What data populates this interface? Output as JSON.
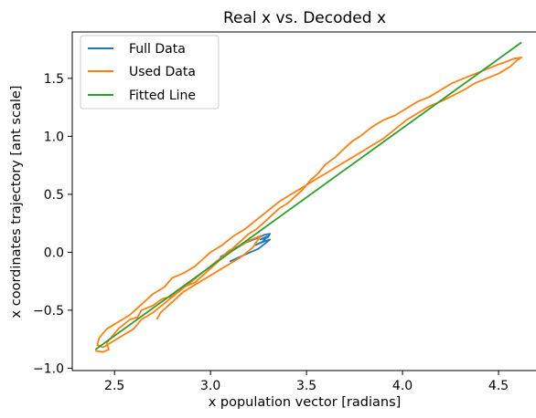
{
  "chart_data": {
    "type": "line",
    "title": "Real x vs. Decoded x",
    "xlabel": "x population vector [radians]",
    "ylabel": "x coordinates trajectory [ant scale]",
    "xlim": [
      2.28,
      4.7
    ],
    "ylim": [
      -1.02,
      1.9
    ],
    "xticks": [
      2.5,
      3.0,
      3.5,
      4.0,
      4.5
    ],
    "xtick_labels": [
      "2.5",
      "3.0",
      "3.5",
      "4.0",
      "4.5"
    ],
    "yticks": [
      -1.0,
      -0.5,
      0.0,
      0.5,
      1.0,
      1.5
    ],
    "ytick_labels": [
      "−1.0",
      "−0.5",
      "0.0",
      "0.5",
      "1.0",
      "1.5"
    ],
    "grid": false,
    "legend_position": "top-left",
    "series": [
      {
        "name": "Full Data",
        "color": "#1f77b4",
        "style": "trace",
        "x": [
          3.05,
          3.12,
          3.18,
          3.24,
          3.28,
          3.31,
          3.3,
          3.26,
          3.3,
          3.27,
          3.23,
          3.29,
          3.31,
          3.25,
          3.18,
          3.1
        ],
        "y": [
          -0.04,
          0.02,
          0.08,
          0.12,
          0.15,
          0.16,
          0.13,
          0.11,
          0.14,
          0.09,
          0.06,
          0.1,
          0.11,
          0.03,
          -0.02,
          -0.08
        ]
      },
      {
        "name": "Used Data",
        "color": "#ff7f0e",
        "style": "trace",
        "x": [
          2.4,
          2.44,
          2.47,
          2.46,
          2.49,
          2.52,
          2.55,
          2.58,
          2.62,
          2.64,
          2.7,
          2.75,
          2.8,
          2.86,
          2.92,
          2.96,
          3.0,
          3.04,
          3.08,
          3.12,
          3.16,
          3.2,
          3.24,
          3.28,
          3.32,
          3.36,
          3.4,
          3.44,
          3.48,
          3.52,
          3.56,
          3.6,
          3.65,
          3.7,
          3.74,
          3.78,
          3.84,
          3.9,
          3.96,
          4.02,
          4.08,
          4.14,
          4.2,
          4.26,
          4.32,
          4.38,
          4.44,
          4.5,
          4.55,
          4.58,
          4.62,
          4.6,
          4.56,
          4.5,
          4.44,
          4.38,
          4.32,
          4.26,
          4.2,
          4.14,
          4.08,
          4.02,
          3.96,
          3.9,
          3.84,
          3.78,
          3.72,
          3.66,
          3.6,
          3.54,
          3.48,
          3.42,
          3.36,
          3.3,
          3.24,
          3.18,
          3.12,
          3.06,
          3.0,
          2.96,
          2.92,
          2.86,
          2.8,
          2.76,
          2.7,
          2.66,
          2.62,
          2.58,
          2.54,
          2.5,
          2.46,
          2.42,
          2.41,
          2.44,
          2.5,
          2.56,
          2.6,
          2.64,
          2.7,
          2.76,
          2.82,
          2.88,
          2.94,
          3.0,
          3.06,
          3.1,
          3.16,
          3.2,
          3.26,
          3.22,
          3.16,
          3.1,
          3.04,
          2.98,
          2.92,
          2.86,
          2.82,
          2.78,
          2.74,
          2.72
        ],
        "y": [
          -0.85,
          -0.86,
          -0.84,
          -0.78,
          -0.72,
          -0.66,
          -0.62,
          -0.58,
          -0.56,
          -0.5,
          -0.46,
          -0.4,
          -0.38,
          -0.3,
          -0.26,
          -0.2,
          -0.14,
          -0.08,
          -0.02,
          0.04,
          0.1,
          0.16,
          0.2,
          0.26,
          0.32,
          0.38,
          0.42,
          0.48,
          0.54,
          0.62,
          0.68,
          0.76,
          0.82,
          0.9,
          0.96,
          1.0,
          1.08,
          1.14,
          1.18,
          1.24,
          1.3,
          1.34,
          1.4,
          1.46,
          1.5,
          1.54,
          1.58,
          1.62,
          1.65,
          1.67,
          1.68,
          1.66,
          1.6,
          1.54,
          1.5,
          1.46,
          1.4,
          1.35,
          1.3,
          1.26,
          1.2,
          1.14,
          1.06,
          0.98,
          0.92,
          0.86,
          0.8,
          0.74,
          0.68,
          0.62,
          0.56,
          0.5,
          0.44,
          0.36,
          0.28,
          0.2,
          0.14,
          0.06,
          0.0,
          -0.06,
          -0.12,
          -0.18,
          -0.22,
          -0.3,
          -0.36,
          -0.42,
          -0.48,
          -0.54,
          -0.58,
          -0.62,
          -0.66,
          -0.74,
          -0.8,
          -0.82,
          -0.76,
          -0.7,
          -0.66,
          -0.58,
          -0.52,
          -0.44,
          -0.36,
          -0.28,
          -0.2,
          -0.12,
          -0.04,
          0.02,
          0.06,
          0.1,
          0.14,
          0.04,
          -0.04,
          -0.1,
          -0.16,
          -0.22,
          -0.28,
          -0.34,
          -0.4,
          -0.46,
          -0.52,
          -0.58
        ]
      },
      {
        "name": "Fitted Line",
        "color": "#2ca02c",
        "style": "line",
        "x": [
          2.4,
          4.62
        ],
        "y": [
          -0.84,
          1.81
        ]
      }
    ]
  }
}
